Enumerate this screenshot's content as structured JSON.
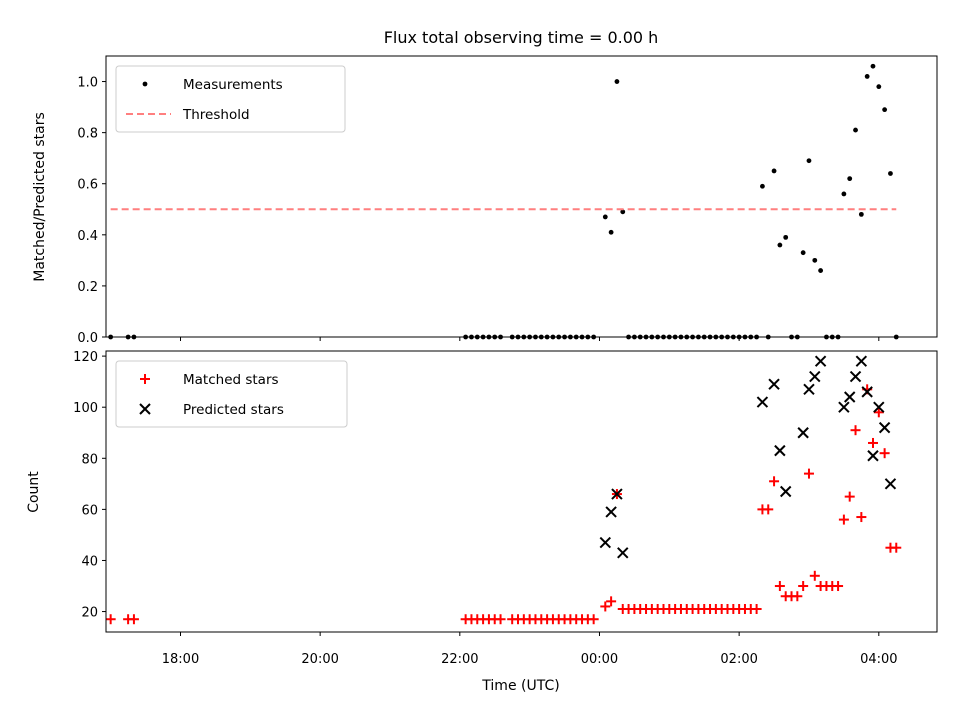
{
  "chart_data": {
    "type": "scatter",
    "title": "Flux total observing time = 0.00 h",
    "xlabel": "Time (UTC)",
    "x_unit": "hours UTC",
    "xlim": [
      "16:56",
      "04:50"
    ],
    "xticks": [
      "18:00",
      "20:00",
      "22:00",
      "00:00",
      "02:00",
      "04:00"
    ],
    "panels": [
      {
        "ylabel": "Matched/Predicted stars",
        "ylim": [
          0,
          1.1
        ],
        "yticks": [
          "0.0",
          "0.2",
          "0.4",
          "0.6",
          "0.8",
          "1.0"
        ],
        "legend": [
          "Measurements",
          "Threshold"
        ],
        "legend_position": "upper left",
        "series": [
          {
            "name": "Measurements",
            "color": "#000000",
            "marker": "dot",
            "points": [
              [
                "17:00",
                0.0
              ],
              [
                "17:15",
                0.0
              ],
              [
                "17:20",
                0.0
              ],
              [
                "22:05",
                0.0
              ],
              [
                "22:10",
                0.0
              ],
              [
                "22:15",
                0.0
              ],
              [
                "22:20",
                0.0
              ],
              [
                "22:25",
                0.0
              ],
              [
                "22:30",
                0.0
              ],
              [
                "22:35",
                0.0
              ],
              [
                "22:45",
                0.0
              ],
              [
                "22:50",
                0.0
              ],
              [
                "22:55",
                0.0
              ],
              [
                "23:00",
                0.0
              ],
              [
                "23:05",
                0.0
              ],
              [
                "23:10",
                0.0
              ],
              [
                "23:15",
                0.0
              ],
              [
                "23:20",
                0.0
              ],
              [
                "23:25",
                0.0
              ],
              [
                "23:30",
                0.0
              ],
              [
                "23:35",
                0.0
              ],
              [
                "23:40",
                0.0
              ],
              [
                "23:45",
                0.0
              ],
              [
                "23:50",
                0.0
              ],
              [
                "23:55",
                0.0
              ],
              [
                "00:05",
                0.47
              ],
              [
                "00:10",
                0.41
              ],
              [
                "00:15",
                1.0
              ],
              [
                "00:20",
                0.49
              ],
              [
                "00:25",
                0.0
              ],
              [
                "00:30",
                0.0
              ],
              [
                "00:35",
                0.0
              ],
              [
                "00:40",
                0.0
              ],
              [
                "00:45",
                0.0
              ],
              [
                "00:50",
                0.0
              ],
              [
                "00:55",
                0.0
              ],
              [
                "01:00",
                0.0
              ],
              [
                "01:05",
                0.0
              ],
              [
                "01:10",
                0.0
              ],
              [
                "01:15",
                0.0
              ],
              [
                "01:20",
                0.0
              ],
              [
                "01:25",
                0.0
              ],
              [
                "01:30",
                0.0
              ],
              [
                "01:35",
                0.0
              ],
              [
                "01:40",
                0.0
              ],
              [
                "01:45",
                0.0
              ],
              [
                "01:50",
                0.0
              ],
              [
                "01:55",
                0.0
              ],
              [
                "02:00",
                0.0
              ],
              [
                "02:05",
                0.0
              ],
              [
                "02:10",
                0.0
              ],
              [
                "02:15",
                0.0
              ],
              [
                "02:20",
                0.59
              ],
              [
                "02:25",
                0.0
              ],
              [
                "02:30",
                0.65
              ],
              [
                "02:35",
                0.36
              ],
              [
                "02:40",
                0.39
              ],
              [
                "02:45",
                0.0
              ],
              [
                "02:50",
                0.0
              ],
              [
                "02:55",
                0.33
              ],
              [
                "03:00",
                0.69
              ],
              [
                "03:05",
                0.3
              ],
              [
                "03:10",
                0.26
              ],
              [
                "03:15",
                0.0
              ],
              [
                "03:20",
                0.0
              ],
              [
                "03:25",
                0.0
              ],
              [
                "03:30",
                0.56
              ],
              [
                "03:35",
                0.62
              ],
              [
                "03:40",
                0.81
              ],
              [
                "03:45",
                0.48
              ],
              [
                "03:50",
                1.02
              ],
              [
                "03:55",
                1.06
              ],
              [
                "04:00",
                0.98
              ],
              [
                "04:05",
                0.89
              ],
              [
                "04:10",
                0.64
              ],
              [
                "04:15",
                0.0
              ]
            ]
          },
          {
            "name": "Threshold",
            "color": "#ff7f7f",
            "style": "dashed",
            "points": [
              [
                "17:00",
                0.5
              ],
              [
                "04:15",
                0.5
              ]
            ]
          }
        ]
      },
      {
        "ylabel": "Count",
        "ylim": [
          12,
          122
        ],
        "yticks": [
          "20",
          "40",
          "60",
          "80",
          "100",
          "120"
        ],
        "legend": [
          "Matched stars",
          "Predicted stars"
        ],
        "legend_position": "upper left",
        "series": [
          {
            "name": "Matched stars",
            "color": "#ff0000",
            "marker": "plus",
            "points": [
              [
                "17:00",
                17
              ],
              [
                "17:15",
                17
              ],
              [
                "17:20",
                17
              ],
              [
                "22:05",
                17
              ],
              [
                "22:10",
                17
              ],
              [
                "22:15",
                17
              ],
              [
                "22:20",
                17
              ],
              [
                "22:25",
                17
              ],
              [
                "22:30",
                17
              ],
              [
                "22:35",
                17
              ],
              [
                "22:45",
                17
              ],
              [
                "22:50",
                17
              ],
              [
                "22:55",
                17
              ],
              [
                "23:00",
                17
              ],
              [
                "23:05",
                17
              ],
              [
                "23:10",
                17
              ],
              [
                "23:15",
                17
              ],
              [
                "23:20",
                17
              ],
              [
                "23:25",
                17
              ],
              [
                "23:30",
                17
              ],
              [
                "23:35",
                17
              ],
              [
                "23:40",
                17
              ],
              [
                "23:45",
                17
              ],
              [
                "23:50",
                17
              ],
              [
                "23:55",
                17
              ],
              [
                "00:05",
                22
              ],
              [
                "00:10",
                24
              ],
              [
                "00:15",
                66
              ],
              [
                "00:20",
                21
              ],
              [
                "00:25",
                21
              ],
              [
                "00:30",
                21
              ],
              [
                "00:35",
                21
              ],
              [
                "00:40",
                21
              ],
              [
                "00:45",
                21
              ],
              [
                "00:50",
                21
              ],
              [
                "00:55",
                21
              ],
              [
                "01:00",
                21
              ],
              [
                "01:05",
                21
              ],
              [
                "01:10",
                21
              ],
              [
                "01:15",
                21
              ],
              [
                "01:20",
                21
              ],
              [
                "01:25",
                21
              ],
              [
                "01:30",
                21
              ],
              [
                "01:35",
                21
              ],
              [
                "01:40",
                21
              ],
              [
                "01:45",
                21
              ],
              [
                "01:50",
                21
              ],
              [
                "01:55",
                21
              ],
              [
                "02:00",
                21
              ],
              [
                "02:05",
                21
              ],
              [
                "02:10",
                21
              ],
              [
                "02:15",
                21
              ],
              [
                "02:20",
                60
              ],
              [
                "02:25",
                60
              ],
              [
                "02:30",
                71
              ],
              [
                "02:35",
                30
              ],
              [
                "02:40",
                26
              ],
              [
                "02:45",
                26
              ],
              [
                "02:50",
                26
              ],
              [
                "02:55",
                30
              ],
              [
                "03:00",
                74
              ],
              [
                "03:05",
                34
              ],
              [
                "03:10",
                30
              ],
              [
                "03:15",
                30
              ],
              [
                "03:20",
                30
              ],
              [
                "03:25",
                30
              ],
              [
                "03:30",
                56
              ],
              [
                "03:35",
                65
              ],
              [
                "03:40",
                91
              ],
              [
                "03:45",
                57
              ],
              [
                "03:50",
                107
              ],
              [
                "03:55",
                86
              ],
              [
                "04:00",
                98
              ],
              [
                "04:05",
                82
              ],
              [
                "04:10",
                45
              ],
              [
                "04:15",
                45
              ]
            ]
          },
          {
            "name": "Predicted stars",
            "color": "#000000",
            "marker": "x",
            "points": [
              [
                "00:05",
                47
              ],
              [
                "00:10",
                59
              ],
              [
                "00:15",
                66
              ],
              [
                "00:20",
                43
              ],
              [
                "02:20",
                102
              ],
              [
                "02:30",
                109
              ],
              [
                "02:35",
                83
              ],
              [
                "02:40",
                67
              ],
              [
                "02:55",
                90
              ],
              [
                "03:00",
                107
              ],
              [
                "03:05",
                112
              ],
              [
                "03:10",
                118
              ],
              [
                "03:30",
                100
              ],
              [
                "03:35",
                104
              ],
              [
                "03:40",
                112
              ],
              [
                "03:45",
                118
              ],
              [
                "03:50",
                106
              ],
              [
                "03:55",
                81
              ],
              [
                "04:00",
                100
              ],
              [
                "04:05",
                92
              ],
              [
                "04:10",
                70
              ]
            ]
          }
        ]
      }
    ]
  }
}
